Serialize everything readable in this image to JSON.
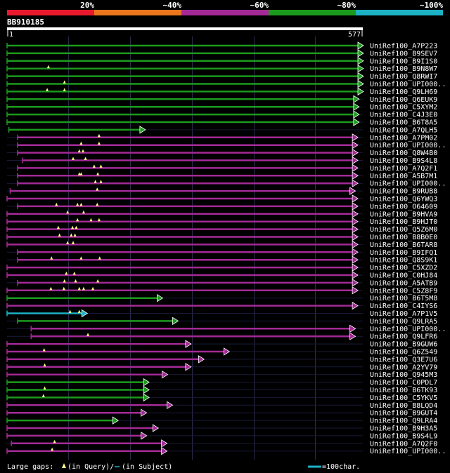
{
  "chart_data": {
    "type": "alignment",
    "title": "BB910185",
    "query_length": 577,
    "axis": {
      "start_label": "1",
      "end_label": "577"
    },
    "identity_scale": [
      {
        "label": "20%",
        "color": "#e8192c"
      },
      {
        "label": "~40%",
        "color": "#e9761d"
      },
      {
        "label": "~60%",
        "color": "#a32a96"
      },
      {
        "label": "~80%",
        "color": "#1c9a1d"
      },
      {
        "label": "~100%",
        "color": "#1cb2c4"
      }
    ],
    "legend": {
      "gaps_prefix": "Large gaps:",
      "gaps_query": "(in Query)/",
      "gaps_subject": "(in Subject)",
      "scale_text": "=100char."
    },
    "hits": [
      {
        "name": "UniRef100_A7P223",
        "start": 1,
        "end": 577,
        "color": "#1c9a1d",
        "gaps": []
      },
      {
        "name": "UniRef100_B9SEV7",
        "start": 1,
        "end": 577,
        "color": "#1c9a1d",
        "gaps": []
      },
      {
        "name": "UniRef100_B9I1S0",
        "start": 1,
        "end": 577,
        "color": "#1c9a1d",
        "gaps": []
      },
      {
        "name": "UniRef100_B9N8W7",
        "start": 1,
        "end": 577,
        "color": "#1c9a1d",
        "gaps": [
          68
        ]
      },
      {
        "name": "UniRef100_Q8RWI7",
        "start": 1,
        "end": 577,
        "color": "#1c9a1d",
        "gaps": []
      },
      {
        "name": "UniRef100_UPI000..",
        "start": 1,
        "end": 577,
        "color": "#1c9a1d",
        "gaps": [
          94
        ]
      },
      {
        "name": "UniRef100_Q9LH69",
        "start": 1,
        "end": 577,
        "color": "#1c9a1d",
        "gaps": [
          66,
          94
        ]
      },
      {
        "name": "UniRef100_Q6EUK9",
        "start": 1,
        "end": 570,
        "color": "#1c9a1d",
        "gaps": []
      },
      {
        "name": "UniRef100_C5XYM2",
        "start": 1,
        "end": 570,
        "color": "#1c9a1d",
        "gaps": []
      },
      {
        "name": "UniRef100_C4J3E0",
        "start": 1,
        "end": 570,
        "color": "#1c9a1d",
        "gaps": []
      },
      {
        "name": "UniRef100_B6T8A5",
        "start": 1,
        "end": 570,
        "color": "#1c9a1d",
        "gaps": []
      },
      {
        "name": "UniRef100_A7QLH5",
        "start": 4,
        "end": 224,
        "color": "#1c9a1d",
        "gaps": []
      },
      {
        "name": "UniRef100_A7PM02",
        "start": 18,
        "end": 568,
        "color": "#a32a96",
        "gaps": [
          150
        ]
      },
      {
        "name": "UniRef100_UPI000..",
        "start": 18,
        "end": 568,
        "color": "#a32a96",
        "gaps": [
          121,
          150
        ]
      },
      {
        "name": "UniRef100_Q8W4B0",
        "start": 18,
        "end": 568,
        "color": "#a32a96",
        "gaps": [
          118,
          124
        ]
      },
      {
        "name": "UniRef100_B9S4L8",
        "start": 26,
        "end": 568,
        "color": "#a32a96",
        "gaps": [
          108,
          128
        ]
      },
      {
        "name": "UniRef100_A7Q2F1",
        "start": 18,
        "end": 568,
        "color": "#a32a96",
        "gaps": [
          142,
          153
        ]
      },
      {
        "name": "UniRef100_A5B7M1",
        "start": 18,
        "end": 568,
        "color": "#a32a96",
        "gaps": [
          118,
          121,
          148
        ]
      },
      {
        "name": "UniRef100_UPI000..",
        "start": 18,
        "end": 568,
        "color": "#a32a96",
        "gaps": [
          144,
          153
        ]
      },
      {
        "name": "UniRef100_B9RUB8",
        "start": 6,
        "end": 564,
        "color": "#a32a96",
        "gaps": [
          147
        ]
      },
      {
        "name": "UniRef100_Q6YWQ3",
        "start": 1,
        "end": 568,
        "color": "#a32a96",
        "gaps": []
      },
      {
        "name": "UniRef100_O64609",
        "start": 18,
        "end": 568,
        "color": "#a32a96",
        "gaps": [
          81,
          115,
          121,
          147
        ]
      },
      {
        "name": "UniRef100_B9HVA9",
        "start": 1,
        "end": 568,
        "color": "#a32a96",
        "gaps": [
          99,
          125
        ]
      },
      {
        "name": "UniRef100_B9HJT0",
        "start": 1,
        "end": 568,
        "color": "#a32a96",
        "gaps": [
          115,
          137,
          150
        ]
      },
      {
        "name": "UniRef100_Q5Z6M0",
        "start": 1,
        "end": 568,
        "color": "#a32a96",
        "gaps": [
          84,
          107,
          113
        ]
      },
      {
        "name": "UniRef100_B8B0E0",
        "start": 1,
        "end": 568,
        "color": "#a32a96",
        "gaps": [
          86,
          105,
          111
        ]
      },
      {
        "name": "UniRef100_B6TAR8",
        "start": 1,
        "end": 568,
        "color": "#a32a96",
        "gaps": [
          99,
          108
        ]
      },
      {
        "name": "UniRef100_B9IFQ1",
        "start": 18,
        "end": 568,
        "color": "#a32a96",
        "gaps": []
      },
      {
        "name": "UniRef100_Q8S9K1",
        "start": 18,
        "end": 568,
        "color": "#a32a96",
        "gaps": [
          73,
          121,
          151
        ]
      },
      {
        "name": "UniRef100_C5XZD2",
        "start": 1,
        "end": 568,
        "color": "#a32a96",
        "gaps": []
      },
      {
        "name": "UniRef100_C0HJ84",
        "start": 1,
        "end": 568,
        "color": "#a32a96",
        "gaps": [
          97,
          110
        ]
      },
      {
        "name": "UniRef100_A5ATB9",
        "start": 18,
        "end": 568,
        "color": "#a32a96",
        "gaps": [
          94,
          112,
          148
        ]
      },
      {
        "name": "UniRef100_C5Z8F9",
        "start": 1,
        "end": 568,
        "color": "#a32a96",
        "gaps": [
          72,
          93,
          118,
          125,
          140
        ]
      },
      {
        "name": "UniRef100_B6T5M8",
        "start": 1,
        "end": 252,
        "color": "#1c9a1d",
        "gaps": []
      },
      {
        "name": "UniRef100_C4IYS6",
        "start": 1,
        "end": 568,
        "color": "#a32a96",
        "gaps": []
      },
      {
        "name": "UniRef100_A7P1V5",
        "start": 1,
        "end": 130,
        "color": "#1cb2c4",
        "gaps": [
          103,
          118
        ]
      },
      {
        "name": "UniRef100_Q9LRA5",
        "start": 18,
        "end": 277,
        "color": "#1c9a1d",
        "gaps": []
      },
      {
        "name": "UniRef100_UPI000..",
        "start": 40,
        "end": 564,
        "color": "#a32a96",
        "gaps": []
      },
      {
        "name": "UniRef100_Q9LFR6",
        "start": 40,
        "end": 564,
        "color": "#a32a96",
        "gaps": [
          132
        ]
      },
      {
        "name": "UniRef100_B9GUW6",
        "start": 1,
        "end": 298,
        "color": "#a32a96",
        "gaps": []
      },
      {
        "name": "UniRef100_Q6Z549",
        "start": 1,
        "end": 360,
        "color": "#a32a96",
        "gaps": [
          61
        ]
      },
      {
        "name": "UniRef100_Q3E7U6",
        "start": 1,
        "end": 319,
        "color": "#a32a96",
        "gaps": []
      },
      {
        "name": "UniRef100_A2YV79",
        "start": 1,
        "end": 298,
        "color": "#a32a96",
        "gaps": [
          62
        ]
      },
      {
        "name": "UniRef100_Q945M3",
        "start": 1,
        "end": 260,
        "color": "#a32a96",
        "gaps": []
      },
      {
        "name": "UniRef100_C0PDL7",
        "start": 1,
        "end": 230,
        "color": "#1c9a1d",
        "gaps": []
      },
      {
        "name": "UniRef100_B6TK93",
        "start": 1,
        "end": 230,
        "color": "#1c9a1d",
        "gaps": [
          62
        ]
      },
      {
        "name": "UniRef100_C5YKV5",
        "start": 1,
        "end": 230,
        "color": "#1c9a1d",
        "gaps": [
          60
        ]
      },
      {
        "name": "UniRef100_B8LQD4",
        "start": 1,
        "end": 268,
        "color": "#a32a96",
        "gaps": []
      },
      {
        "name": "UniRef100_B9GUT4",
        "start": 1,
        "end": 226,
        "color": "#a32a96",
        "gaps": []
      },
      {
        "name": "UniRef100_Q9LRA4",
        "start": 1,
        "end": 180,
        "color": "#1c9a1d",
        "gaps": []
      },
      {
        "name": "UniRef100_B9H3A5",
        "start": 1,
        "end": 245,
        "color": "#a32a96",
        "gaps": []
      },
      {
        "name": "UniRef100_B9S4L9",
        "start": 1,
        "end": 226,
        "color": "#a32a96",
        "gaps": []
      },
      {
        "name": "UniRef100_A7Q2F0",
        "start": 8,
        "end": 259,
        "color": "#a32a96",
        "gaps": [
          78
        ]
      },
      {
        "name": "UniRef100_UPI000..",
        "start": 1,
        "end": 259,
        "color": "#a32a96",
        "gaps": [
          74
        ]
      }
    ]
  }
}
